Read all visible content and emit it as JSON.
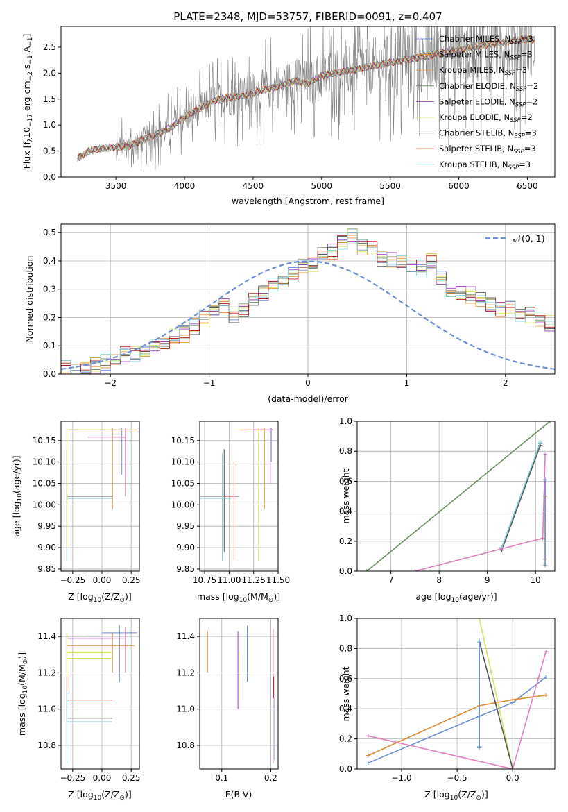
{
  "figure": {
    "title": "PLATE=2348, MJD=53757, FIBERID=0091, z=0.407"
  },
  "chart_data": [
    {
      "id": "spectrum",
      "type": "line",
      "title": "PLATE=2348, MJD=53757, FIBERID=0091, z=0.407",
      "xlabel": "wavelength [Angstrom, rest frame]",
      "ylabel": "Flux [f",
      "ylabel_parts": [
        "Flux [f",
        "λ",
        "10",
        "−17",
        " erg cm",
        "−2",
        " s",
        "−1",
        " A",
        "−1",
        "]"
      ],
      "xlim": [
        3100,
        6700
      ],
      "ylim": [
        0,
        2.9
      ],
      "xticks": [
        "3500",
        "4000",
        "4500",
        "5000",
        "5500",
        "6000",
        "6500"
      ],
      "xtick_values": [
        3500,
        4000,
        4500,
        5000,
        5500,
        6000,
        6500
      ],
      "yticks": [
        "0.0",
        "0.5",
        "1.0",
        "1.5",
        "2.0",
        "2.5"
      ],
      "ytick_values": [
        0,
        0.5,
        1.0,
        1.5,
        2.0,
        2.5
      ],
      "grid": false,
      "legend_position": "top-right",
      "continuum": {
        "x": [
          3220,
          3300,
          3400,
          3500,
          3600,
          3700,
          3800,
          3900,
          4000,
          4100,
          4200,
          4300,
          4400,
          4500,
          4600,
          4700,
          4800,
          4900,
          5000,
          5100,
          5200,
          5300,
          5400,
          5500,
          5600,
          5700,
          5800,
          5900,
          6000,
          6100,
          6200,
          6300,
          6400,
          6500
        ],
        "y": [
          0.35,
          0.5,
          0.55,
          0.57,
          0.6,
          0.72,
          0.82,
          0.95,
          1.15,
          1.3,
          1.45,
          1.52,
          1.55,
          1.6,
          1.7,
          1.75,
          1.85,
          1.8,
          1.95,
          2.0,
          2.05,
          2.1,
          2.15,
          2.2,
          2.25,
          2.3,
          2.35,
          2.4,
          2.45,
          2.5,
          2.55,
          2.58,
          2.62,
          2.65
        ]
      },
      "legend": [
        {
          "name": "Chabrier MILES, N",
          "sub": "SSP",
          "val": "=3",
          "color": "#6c8fd6"
        },
        {
          "name": "Salpeter MILES, N",
          "sub": "SSP",
          "val": "=3",
          "color": "#e08a2c"
        },
        {
          "name": "Kroupa MILES, N",
          "sub": "SSP",
          "val": "=3",
          "color": "#e8a04a"
        },
        {
          "name": "Chabrier ELODIE, N",
          "sub": "SSP",
          "val": "=2",
          "color": "#6b8f6b"
        },
        {
          "name": "Salpeter ELODIE, N",
          "sub": "SSP",
          "val": "=2",
          "color": "#9b3fc4"
        },
        {
          "name": "Kroupa ELODIE, N",
          "sub": "SSP",
          "val": "=2",
          "color": "#d8e060"
        },
        {
          "name": "Chabrier STELIB, N",
          "sub": "SSP",
          "val": "=3",
          "color": "#555555"
        },
        {
          "name": "Salpeter STELIB, N",
          "sub": "SSP",
          "val": "=3",
          "color": "#c41c1c"
        },
        {
          "name": "Kroupa STELIB, N",
          "sub": "SSP",
          "val": "=3",
          "color": "#86d0d8"
        }
      ]
    },
    {
      "id": "residuals",
      "type": "line",
      "xlabel": "(data-model)/error",
      "ylabel": "Normed distribution",
      "xlim": [
        -2.5,
        2.5
      ],
      "ylim": [
        0,
        0.53
      ],
      "xticks": [
        "−2",
        "−1",
        "0",
        "1",
        "2"
      ],
      "xtick_values": [
        -2,
        -1,
        0,
        1,
        2
      ],
      "yticks": [
        "0.0",
        "0.1",
        "0.2",
        "0.3",
        "0.4",
        "0.5"
      ],
      "ytick_values": [
        0,
        0.1,
        0.2,
        0.3,
        0.4,
        0.5
      ],
      "grid": true,
      "legend_position": "top-right",
      "gauss_label": "𝒩(0, 1)",
      "gauss_color": "#6c8fd6",
      "bin_edges_start": -2.5,
      "bin_width": 0.1,
      "hist_center": [
        0.02,
        0.02,
        0.02,
        0.03,
        0.04,
        0.05,
        0.07,
        0.07,
        0.08,
        0.1,
        0.1,
        0.13,
        0.14,
        0.17,
        0.2,
        0.22,
        0.24,
        0.21,
        0.23,
        0.27,
        0.29,
        0.31,
        0.33,
        0.35,
        0.38,
        0.39,
        0.42,
        0.43,
        0.47,
        0.49,
        0.45,
        0.44,
        0.41,
        0.4,
        0.4,
        0.38,
        0.37,
        0.4,
        0.34,
        0.29,
        0.29,
        0.28,
        0.26,
        0.25,
        0.23,
        0.23,
        0.2,
        0.21,
        0.19,
        0.18
      ]
    },
    {
      "id": "age_vs_Z",
      "type": "scatter",
      "xlabel": "Z [log",
      "xlabel_parts": [
        "Z [log",
        "10",
        "(Z/Z",
        "⊙",
        ")]"
      ],
      "ylabel_parts": [
        "age  [log",
        "10",
        "(age/yr)]"
      ],
      "xlim": [
        -0.35,
        0.32
      ],
      "ylim": [
        9.845,
        10.195
      ],
      "xticks": [
        "−0.25",
        "0.00",
        "0.25"
      ],
      "xtick_values": [
        -0.25,
        0,
        0.25
      ],
      "yticks": [
        "9.85",
        "9.90",
        "9.95",
        "10.00",
        "10.05",
        "10.10",
        "10.15"
      ],
      "ytick_values": [
        9.85,
        9.9,
        9.95,
        10.0,
        10.05,
        10.1,
        10.15
      ],
      "grid": true
    },
    {
      "id": "age_vs_mass",
      "type": "scatter",
      "xlabel_parts": [
        "mass [log",
        "10",
        "(M/M",
        "⊙",
        ")]"
      ],
      "xlim": [
        10.7,
        11.5
      ],
      "ylim": [
        9.845,
        10.195
      ],
      "xticks": [
        "10.75",
        "11.00",
        "11.25",
        "11.50"
      ],
      "xtick_values": [
        10.75,
        11.0,
        11.25,
        11.5
      ],
      "yticks": [
        "9.85",
        "9.90",
        "9.95",
        "10.00",
        "10.05",
        "10.10",
        "10.15"
      ],
      "ytick_values": [
        9.85,
        9.9,
        9.95,
        10.0,
        10.05,
        10.1,
        10.15
      ],
      "grid": true
    },
    {
      "id": "weight_vs_age",
      "type": "line",
      "xlabel_parts": [
        "age  [log",
        "10",
        "(age/yr)]"
      ],
      "ylabel": "mass weight",
      "xlim": [
        6.3,
        10.4
      ],
      "ylim": [
        0,
        1.0
      ],
      "xticks": [
        "7",
        "8",
        "9",
        "10"
      ],
      "xtick_values": [
        7,
        8,
        9,
        10
      ],
      "yticks": [
        "0.0",
        "0.2",
        "0.4",
        "0.6",
        "0.8",
        "1.0"
      ],
      "ytick_values": [
        0,
        0.2,
        0.4,
        0.6,
        0.8,
        1.0
      ],
      "grid": true
    },
    {
      "id": "mass_vs_Z",
      "type": "scatter",
      "xlabel_parts": [
        "Z [log",
        "10",
        "(Z/Z",
        "⊙",
        ")]"
      ],
      "ylabel_parts": [
        "mass [log",
        "10",
        "(M/M",
        "⊙",
        ")]"
      ],
      "xlim": [
        -0.35,
        0.32
      ],
      "ylim": [
        10.67,
        11.5
      ],
      "xticks": [
        "−0.25",
        "0.00",
        "0.25"
      ],
      "xtick_values": [
        -0.25,
        0,
        0.25
      ],
      "yticks": [
        "10.8",
        "11.0",
        "11.2",
        "11.4"
      ],
      "ytick_values": [
        10.8,
        11.0,
        11.2,
        11.4
      ],
      "grid": true
    },
    {
      "id": "mass_vs_ebv",
      "type": "scatter",
      "xlabel": "E(B-V)",
      "xlim": [
        0.055,
        0.215
      ],
      "ylim": [
        10.67,
        11.5
      ],
      "xticks": [
        "0.1",
        "0.2"
      ],
      "xtick_values": [
        0.1,
        0.2
      ],
      "yticks": [
        "10.8",
        "11.0",
        "11.2",
        "11.4"
      ],
      "ytick_values": [
        10.8,
        11.0,
        11.2,
        11.4
      ],
      "grid": true
    },
    {
      "id": "weight_vs_Z",
      "type": "line",
      "xlabel_parts": [
        "Z [log",
        "10",
        "(Z/Z",
        "⊙",
        ")]"
      ],
      "ylabel": "mass weight",
      "xlim": [
        -1.4,
        0.38
      ],
      "ylim": [
        0,
        1.0
      ],
      "xticks": [
        "−1.0",
        "−0.5",
        "0.0"
      ],
      "xtick_values": [
        -1.0,
        -0.5,
        0.0
      ],
      "yticks": [
        "0.0",
        "0.2",
        "0.4",
        "0.6",
        "0.8",
        "1.0"
      ],
      "ytick_values": [
        0,
        0.2,
        0.4,
        0.6,
        0.8,
        1.0
      ],
      "grid": true
    }
  ]
}
